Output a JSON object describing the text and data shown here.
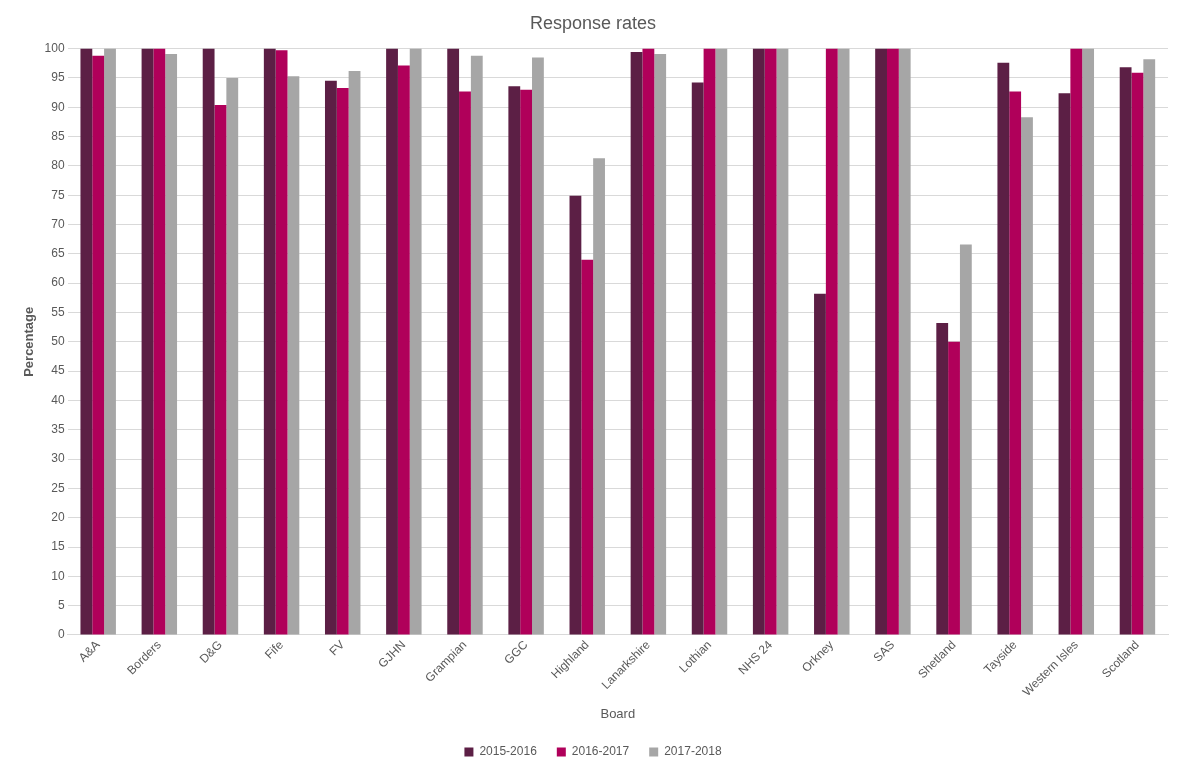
{
  "chart_data": {
    "type": "bar",
    "title": "Response rates",
    "xlabel": "Board",
    "ylabel": "Percentage",
    "categories": [
      "A&A",
      "Borders",
      "D&G",
      "Fife",
      "FV",
      "GJHN",
      "Grampian",
      "GGC",
      "Highland",
      "Lanarkshire",
      "Lothian",
      "NHS 24",
      "Orkney",
      "SAS",
      "Shetland",
      "Tayside",
      "Western Isles",
      "Scotland"
    ],
    "series": [
      {
        "name": "2015-2016",
        "color": "#5c1f45",
        "values": [
          100,
          100,
          100,
          100,
          94.5,
          100,
          100,
          93.6,
          74.9,
          99.4,
          94.2,
          100,
          58.2,
          100,
          53.2,
          97.6,
          92.4,
          96.8
        ]
      },
      {
        "name": "2016-2017",
        "color": "#b0005a",
        "values": [
          98.8,
          100,
          90.4,
          99.7,
          93.3,
          97.1,
          92.7,
          93,
          64,
          100,
          100,
          100,
          100,
          100,
          50,
          92.7,
          100,
          95.9
        ]
      },
      {
        "name": "2017-2018",
        "color": "#a6a6a6",
        "values": [
          100,
          99.1,
          95,
          95.3,
          96.2,
          100,
          98.8,
          98.5,
          81.3,
          99.1,
          100,
          100,
          100,
          100,
          66.6,
          88.3,
          100,
          98.2
        ]
      }
    ],
    "ylim": [
      0,
      100
    ],
    "yticks": [
      0,
      5,
      10,
      15,
      20,
      25,
      30,
      35,
      40,
      45,
      50,
      55,
      60,
      65,
      70,
      75,
      80,
      85,
      90,
      95,
      100
    ],
    "grid": "y",
    "legend": "bottom"
  }
}
